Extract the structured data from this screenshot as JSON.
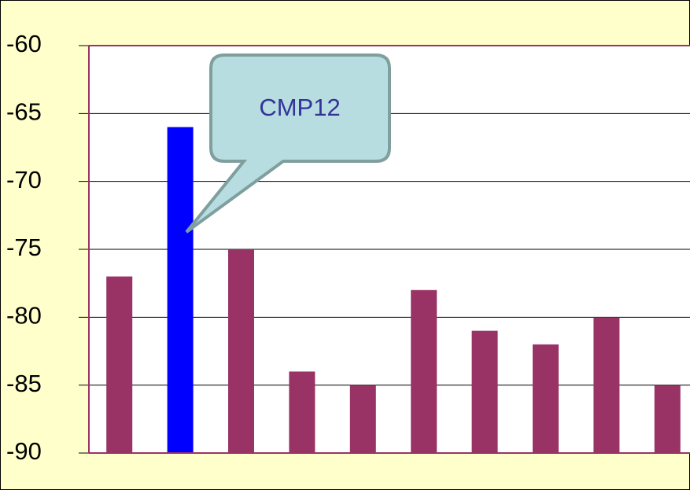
{
  "chart_data": {
    "type": "bar",
    "categories": [
      null,
      null,
      null,
      null,
      null,
      null,
      null,
      null,
      null,
      null
    ],
    "values": [
      -77,
      -66,
      -75,
      -84,
      -85,
      -78,
      -81,
      -82,
      -80,
      -85
    ],
    "colors": [
      "#993366",
      "#0000ff",
      "#993366",
      "#993366",
      "#993366",
      "#993366",
      "#993366",
      "#993366",
      "#993366",
      "#993366"
    ],
    "ylim": [
      -90,
      -60
    ],
    "yticks": [
      -90,
      -85,
      -80,
      -75,
      -70,
      -65,
      -60
    ],
    "grid": true,
    "annotation": "CMP12"
  }
}
